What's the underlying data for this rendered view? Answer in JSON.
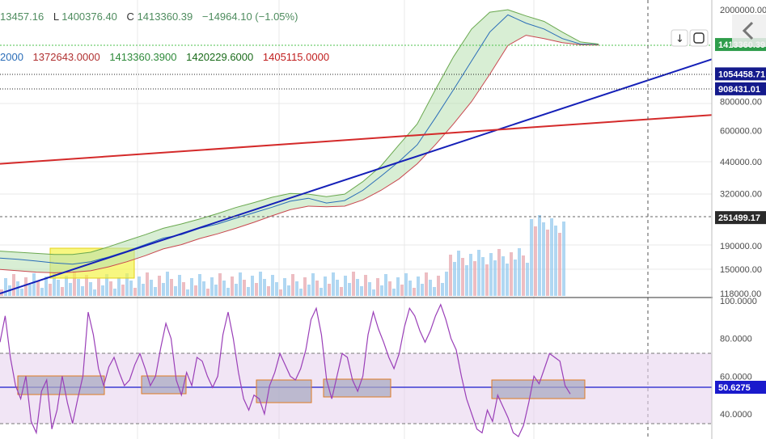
{
  "header": {
    "ohlc_line": {
      "high": "13457.16",
      "low_label": "L",
      "low": "1400376.40",
      "close_label": "C",
      "close": "1413360.39",
      "change": "−14964.10 (−1.05%)"
    },
    "indicator_line": {
      "v0": "2000",
      "v1": "1372643.0000",
      "v2": "1413360.3900",
      "v3": "1420229.6000",
      "v4": "1405115.0000"
    }
  },
  "buttons": {
    "scroll_down_icon": "↓",
    "fullscreen_icon": "⛶",
    "collapse_icon": "‹"
  },
  "chart_data": [
    {
      "type": "line",
      "panel": "price",
      "scale": "log",
      "ylim": [
        118000,
        2000000
      ],
      "y_ticks": [
        "2000000.00",
        "800000.00",
        "600000.00",
        "440000.00",
        "320000.00",
        "190000.00",
        "150000.00",
        "118000.00"
      ],
      "price_tags": [
        {
          "label": "1413360.39",
          "value": 1413360,
          "color": "#2e9d4b"
        },
        {
          "label": "1054458.71",
          "value": 1054458,
          "color": "#141a8c"
        },
        {
          "label": "908431.01",
          "value": 908431,
          "color": "#141a8c"
        },
        {
          "label": "251499.17",
          "value": 251499,
          "color": "#2a2a2a"
        }
      ],
      "series": [
        {
          "color": "#2a6db8",
          "values": [
            168000,
            166000,
            163000,
            160000,
            158000,
            162000,
            170000,
            180000,
            192000,
            205000,
            212000,
            226000,
            236000,
            250000,
            264000,
            279000,
            296000,
            305000,
            291000,
            298000,
            330000,
            380000,
            440000,
            520000,
            680000,
            900000,
            1200000,
            1600000,
            1900000,
            1750000,
            1650000,
            1500000,
            1420000,
            1413360
          ]
        },
        {
          "color": "#6aa84f",
          "values": [
            180000,
            178000,
            176000,
            174000,
            174000,
            178000,
            188000,
            200000,
            212000,
            226000,
            236000,
            248000,
            262000,
            278000,
            292000,
            308000,
            320000,
            318000,
            310000,
            318000,
            360000,
            420000,
            520000,
            640000,
            900000,
            1250000,
            1650000,
            1950000,
            2000000,
            1880000,
            1780000,
            1600000,
            1450000,
            1420000
          ]
        },
        {
          "color": "#c9474f",
          "values": [
            150000,
            148000,
            146000,
            145000,
            146000,
            148000,
            154000,
            162000,
            172000,
            184000,
            192000,
            204000,
            214000,
            226000,
            240000,
            256000,
            272000,
            282000,
            280000,
            282000,
            300000,
            330000,
            370000,
            430000,
            520000,
            640000,
            800000,
            1050000,
            1400000,
            1550000,
            1500000,
            1440000,
            1410000,
            1405000
          ]
        }
      ],
      "trendlines": [
        {
          "color": "#1520b8",
          "from": [
            0,
            118000
          ],
          "to": [
            40,
            1220000
          ]
        },
        {
          "color": "#d42a2a",
          "from": [
            0,
            430000
          ],
          "to": [
            40,
            700000
          ]
        }
      ]
    },
    {
      "type": "line",
      "panel": "oscillator",
      "ylim": [
        28,
        100
      ],
      "y_ticks": [
        "100.0000",
        "80.0000",
        "60.0000",
        "40.0000"
      ],
      "current": {
        "label": "50.6275",
        "value": 50.6275
      },
      "band": [
        30,
        70
      ],
      "values": [
        78,
        92,
        70,
        55,
        48,
        60,
        36,
        30,
        52,
        58,
        32,
        42,
        60,
        46,
        35,
        48,
        60,
        94,
        82,
        64,
        55,
        65,
        70,
        62,
        55,
        58,
        66,
        72,
        64,
        55,
        60,
        75,
        88,
        80,
        58,
        50,
        62,
        55,
        70,
        68,
        60,
        54,
        60,
        82,
        94,
        80,
        62,
        48,
        42,
        50,
        48,
        40,
        55,
        62,
        72,
        66,
        60,
        58,
        64,
        74,
        90,
        96,
        82,
        58,
        48,
        60,
        72,
        70,
        58,
        52,
        60,
        82,
        94,
        85,
        78,
        70,
        64,
        72,
        86,
        96,
        92,
        84,
        78,
        84,
        92,
        98,
        90,
        80,
        74,
        60,
        48,
        40,
        32,
        30,
        42,
        36,
        50,
        44,
        38,
        30,
        28,
        34,
        46,
        60,
        56,
        64,
        72,
        70,
        68,
        55,
        50.6
      ]
    }
  ]
}
